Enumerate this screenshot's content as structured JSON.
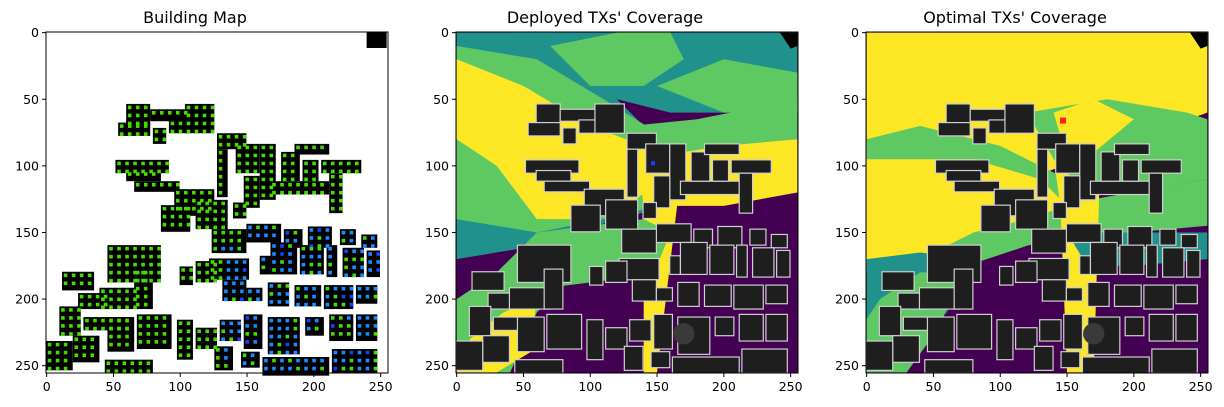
{
  "colors": {
    "viridis_purple": "#440154",
    "viridis_teal": "#21918c",
    "viridis_green": "#5ec962",
    "viridis_yellow": "#fde725",
    "building_dark": "#1e1e1e",
    "building_outline": "#cfcfcf",
    "map_building": "#000000",
    "map_background": "#ffffff",
    "green_tx": "#44dd00",
    "blue_rx": "#1a8cff",
    "deep_blue": "#1f3cff",
    "red_marker": "#ff2020"
  },
  "chart_data": [
    {
      "type": "heatmap",
      "title": "Building Map",
      "xlim": [
        0,
        255
      ],
      "ylim": [
        255,
        0
      ],
      "xticks": [
        "0",
        "50",
        "100",
        "150",
        "200",
        "250"
      ],
      "yticks": [
        "0",
        "50",
        "100",
        "150",
        "200",
        "250"
      ],
      "content": "binary building mask with green and blue marker squares"
    },
    {
      "type": "heatmap",
      "title": "Deployed TXs' Coverage",
      "xlim": [
        0,
        255
      ],
      "ylim": [
        255,
        0
      ],
      "xticks": [
        "0",
        "50",
        "100",
        "150",
        "200",
        "250"
      ],
      "yticks": [
        "0",
        "50",
        "100",
        "150",
        "200",
        "250"
      ],
      "colormap": "viridis"
    },
    {
      "type": "heatmap",
      "title": "Optimal TXs' Coverage",
      "xlim": [
        0,
        255
      ],
      "ylim": [
        255,
        0
      ],
      "xticks": [
        "0",
        "50",
        "100",
        "150",
        "200",
        "250"
      ],
      "yticks": [
        "0",
        "50",
        "100",
        "150",
        "200",
        "250"
      ],
      "colormap": "viridis"
    }
  ]
}
